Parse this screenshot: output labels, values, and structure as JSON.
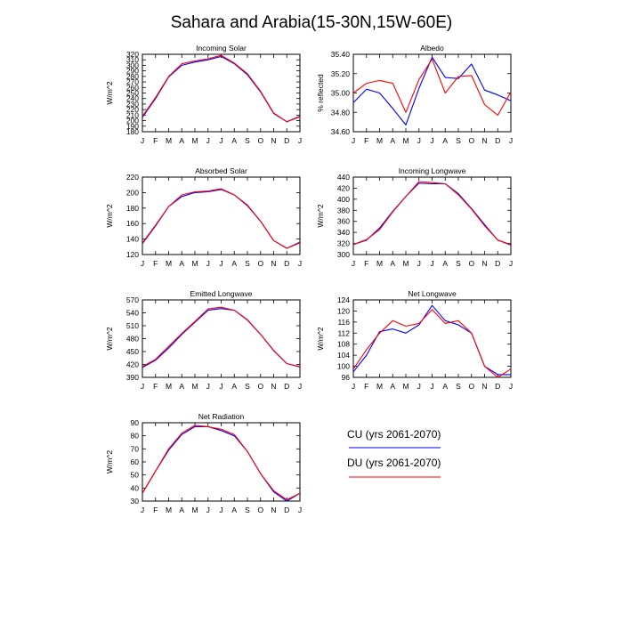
{
  "figure_title": "Sahara and Arabia(15-30N,15W-60E)",
  "legend": [
    {
      "label": "CU (yrs 2061-2070)",
      "color": "#0000ff"
    },
    {
      "label": "DU (yrs 2061-2070)",
      "color": "#ff0000"
    }
  ],
  "chart_data": [
    {
      "type": "line",
      "title": "Incoming Solar",
      "ylabel": "W/m^2",
      "xlabel": "",
      "categories": [
        "J",
        "F",
        "M",
        "A",
        "M",
        "J",
        "J",
        "A",
        "S",
        "O",
        "N",
        "D",
        "J"
      ],
      "ylim": [
        180,
        320
      ],
      "yticks": [
        "180",
        "190",
        "200",
        "210",
        "220",
        "230",
        "240",
        "250",
        "260",
        "270",
        "280",
        "290",
        "300",
        "310",
        "320"
      ],
      "series": [
        {
          "name": "CU (yrs 2061-2070)",
          "color": "#0000ff",
          "values": [
            206,
            240,
            279,
            300,
            306,
            310,
            316,
            303,
            283,
            252,
            213,
            198,
            208
          ]
        },
        {
          "name": "DU (yrs 2061-2070)",
          "color": "#ff0000",
          "values": [
            208,
            242,
            280,
            303,
            308,
            312,
            318,
            304,
            285,
            253,
            214,
            198,
            207
          ]
        }
      ]
    },
    {
      "type": "line",
      "title": "Albedo",
      "ylabel": "% reflected",
      "xlabel": "",
      "categories": [
        "J",
        "F",
        "M",
        "A",
        "M",
        "J",
        "J",
        "A",
        "S",
        "O",
        "N",
        "D",
        "J"
      ],
      "ylim": [
        34.6,
        35.4
      ],
      "yticks": [
        "34.60",
        "34.80",
        "35.00",
        "35.20",
        "35.40"
      ],
      "series": [
        {
          "name": "CU (yrs 2061-2070)",
          "color": "#0000ff",
          "values": [
            34.9,
            35.04,
            35.0,
            34.84,
            34.67,
            35.05,
            35.37,
            35.16,
            35.15,
            35.3,
            35.03,
            34.98,
            34.92
          ]
        },
        {
          "name": "DU (yrs 2061-2070)",
          "color": "#ff0000",
          "values": [
            35.0,
            35.1,
            35.13,
            35.1,
            34.8,
            35.14,
            35.35,
            35.0,
            35.17,
            35.18,
            34.88,
            34.77,
            35.01
          ]
        }
      ]
    },
    {
      "type": "line",
      "title": "Absorbed Solar",
      "ylabel": "W/m^2",
      "xlabel": "",
      "categories": [
        "J",
        "F",
        "M",
        "A",
        "M",
        "J",
        "J",
        "A",
        "S",
        "O",
        "N",
        "D",
        "J"
      ],
      "ylim": [
        120,
        220
      ],
      "yticks": [
        "120",
        "140",
        "160",
        "180",
        "200",
        "220"
      ],
      "series": [
        {
          "name": "CU (yrs 2061-2070)",
          "color": "#0000ff",
          "values": [
            134,
            157,
            182,
            195,
            200,
            201,
            204,
            197,
            183,
            163,
            138,
            128,
            136
          ]
        },
        {
          "name": "DU (yrs 2061-2070)",
          "color": "#ff0000",
          "values": [
            135,
            158,
            182,
            197,
            201,
            202,
            205,
            197,
            184,
            163,
            138,
            128,
            135
          ]
        }
      ]
    },
    {
      "type": "line",
      "title": "Incoming Longwave",
      "ylabel": "W/m^2",
      "xlabel": "",
      "categories": [
        "J",
        "F",
        "M",
        "A",
        "M",
        "J",
        "J",
        "A",
        "S",
        "O",
        "N",
        "D",
        "J"
      ],
      "ylim": [
        300,
        440
      ],
      "yticks": [
        "300",
        "320",
        "340",
        "360",
        "380",
        "400",
        "420",
        "440"
      ],
      "series": [
        {
          "name": "CU (yrs 2061-2070)",
          "color": "#0000ff",
          "values": [
            318,
            326,
            348,
            378,
            405,
            429,
            428,
            428,
            410,
            383,
            354,
            326,
            317
          ]
        },
        {
          "name": "DU (yrs 2061-2070)",
          "color": "#ff0000",
          "values": [
            318,
            327,
            345,
            377,
            405,
            432,
            430,
            428,
            408,
            382,
            352,
            326,
            318
          ]
        }
      ]
    },
    {
      "type": "line",
      "title": "Emitted Longwave",
      "ylabel": "W/m^2",
      "xlabel": "",
      "categories": [
        "J",
        "F",
        "M",
        "A",
        "M",
        "J",
        "J",
        "A",
        "S",
        "O",
        "N",
        "D",
        "J"
      ],
      "ylim": [
        390,
        570
      ],
      "yticks": [
        "390",
        "420",
        "450",
        "480",
        "510",
        "540",
        "570"
      ],
      "series": [
        {
          "name": "CU (yrs 2061-2070)",
          "color": "#0000ff",
          "values": [
            413,
            430,
            458,
            490,
            518,
            546,
            550,
            546,
            523,
            490,
            453,
            422,
            414
          ]
        },
        {
          "name": "DU (yrs 2061-2070)",
          "color": "#ff0000",
          "values": [
            415,
            432,
            462,
            492,
            520,
            549,
            553,
            546,
            524,
            490,
            452,
            422,
            415
          ]
        }
      ]
    },
    {
      "type": "line",
      "title": "Net Longwave",
      "ylabel": "W/m^2",
      "xlabel": "",
      "categories": [
        "J",
        "F",
        "M",
        "A",
        "M",
        "J",
        "J",
        "A",
        "S",
        "O",
        "N",
        "D",
        "J"
      ],
      "ylim": [
        96,
        124
      ],
      "yticks": [
        "96",
        "100",
        "104",
        "108",
        "112",
        "116",
        "120",
        "124"
      ],
      "series": [
        {
          "name": "CU (yrs 2061-2070)",
          "color": "#0000ff",
          "values": [
            98,
            104,
            112.5,
            113.5,
            112,
            115,
            122,
            116.5,
            115,
            112,
            100,
            97,
            97
          ]
        },
        {
          "name": "DU (yrs 2061-2070)",
          "color": "#ff0000",
          "values": [
            99,
            106,
            112,
            116.5,
            114.5,
            115.5,
            120.5,
            115.5,
            116.5,
            112,
            100,
            96,
            99
          ]
        }
      ]
    },
    {
      "type": "line",
      "title": "Net Radiation",
      "ylabel": "W/m^2",
      "xlabel": "",
      "categories": [
        "J",
        "F",
        "M",
        "A",
        "M",
        "J",
        "J",
        "A",
        "S",
        "O",
        "N",
        "D",
        "J"
      ],
      "ylim": [
        30,
        90
      ],
      "yticks": [
        "30",
        "40",
        "50",
        "60",
        "70",
        "80",
        "90"
      ],
      "series": [
        {
          "name": "CU (yrs 2061-2070)",
          "color": "#0000ff",
          "values": [
            36,
            53,
            69,
            81,
            87,
            87,
            84,
            80,
            68,
            51,
            37,
            30,
            36
          ]
        },
        {
          "name": "DU (yrs 2061-2070)",
          "color": "#ff0000",
          "values": [
            36,
            53,
            70,
            82,
            88,
            87,
            85,
            81,
            68,
            51,
            38,
            31,
            36
          ]
        }
      ]
    }
  ]
}
